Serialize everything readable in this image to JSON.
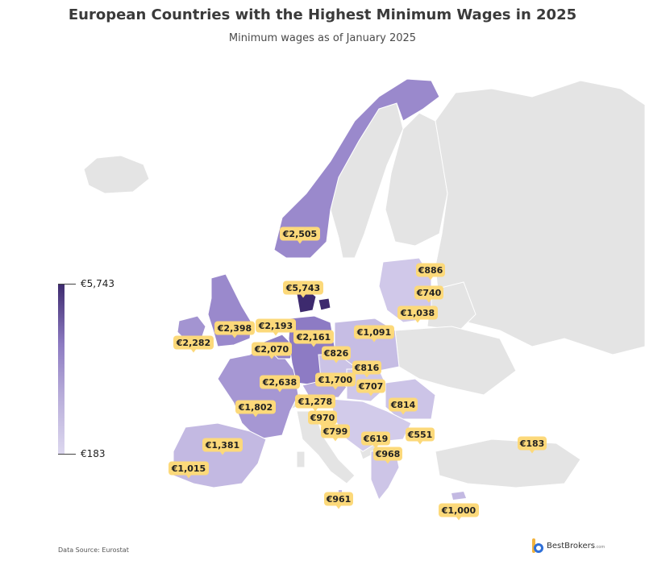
{
  "title": "European Countries with the Highest Minimum Wages in 2025",
  "subtitle": "Minimum wages as of January 2025",
  "legend": {
    "max_label": "€5,743",
    "min_label": "€183",
    "max_value": 5743,
    "min_value": 183
  },
  "source": "Data Source: Eurostat",
  "brand": {
    "name": "BestBrokers",
    "suffix": ".com"
  },
  "colors": {
    "background_land": "#e4e4e4",
    "high": "#3d2a6e",
    "low": "#ddd8ef",
    "label_bg": "#fcd97a"
  },
  "labels": [
    {
      "id": "norway",
      "text": "€2,505",
      "value": 2505
    },
    {
      "id": "denmark",
      "text": "€5,743",
      "value": 5743
    },
    {
      "id": "estonia",
      "text": "€886",
      "value": 886
    },
    {
      "id": "latvia",
      "text": "€740",
      "value": 740
    },
    {
      "id": "lithuania",
      "text": "€1,038",
      "value": 1038
    },
    {
      "id": "uk",
      "text": "€2,398",
      "value": 2398
    },
    {
      "id": "ireland",
      "text": "€2,282",
      "value": 2282
    },
    {
      "id": "netherlands",
      "text": "€2,193",
      "value": 2193
    },
    {
      "id": "germany",
      "text": "€2,161",
      "value": 2161
    },
    {
      "id": "poland",
      "text": "€1,091",
      "value": 1091
    },
    {
      "id": "belgium",
      "text": "€2,070",
      "value": 2070
    },
    {
      "id": "czechia",
      "text": "€826",
      "value": 826
    },
    {
      "id": "slovakia",
      "text": "€816",
      "value": 816
    },
    {
      "id": "luxembourg",
      "text": "€2,638",
      "value": 2638
    },
    {
      "id": "austria",
      "text": "€1,700",
      "value": 1700
    },
    {
      "id": "hungary",
      "text": "€707",
      "value": 707
    },
    {
      "id": "france",
      "text": "€1,802",
      "value": 1802
    },
    {
      "id": "slovenia",
      "text": "€1,278",
      "value": 1278
    },
    {
      "id": "romania",
      "text": "€814",
      "value": 814
    },
    {
      "id": "croatia",
      "text": "€970",
      "value": 970
    },
    {
      "id": "bosnia",
      "text": "€799",
      "value": 799
    },
    {
      "id": "serbia",
      "text": "€619",
      "value": 619
    },
    {
      "id": "bulgaria",
      "text": "€551",
      "value": 551
    },
    {
      "id": "spain",
      "text": "€1,381",
      "value": 1381
    },
    {
      "id": "portugal",
      "text": "€1,015",
      "value": 1015
    },
    {
      "id": "greece",
      "text": "€968",
      "value": 968
    },
    {
      "id": "turkey",
      "text": "€183",
      "value": 183
    },
    {
      "id": "malta",
      "text": "€961",
      "value": 961
    },
    {
      "id": "cyprus",
      "text": "€1,000",
      "value": 1000
    }
  ]
}
